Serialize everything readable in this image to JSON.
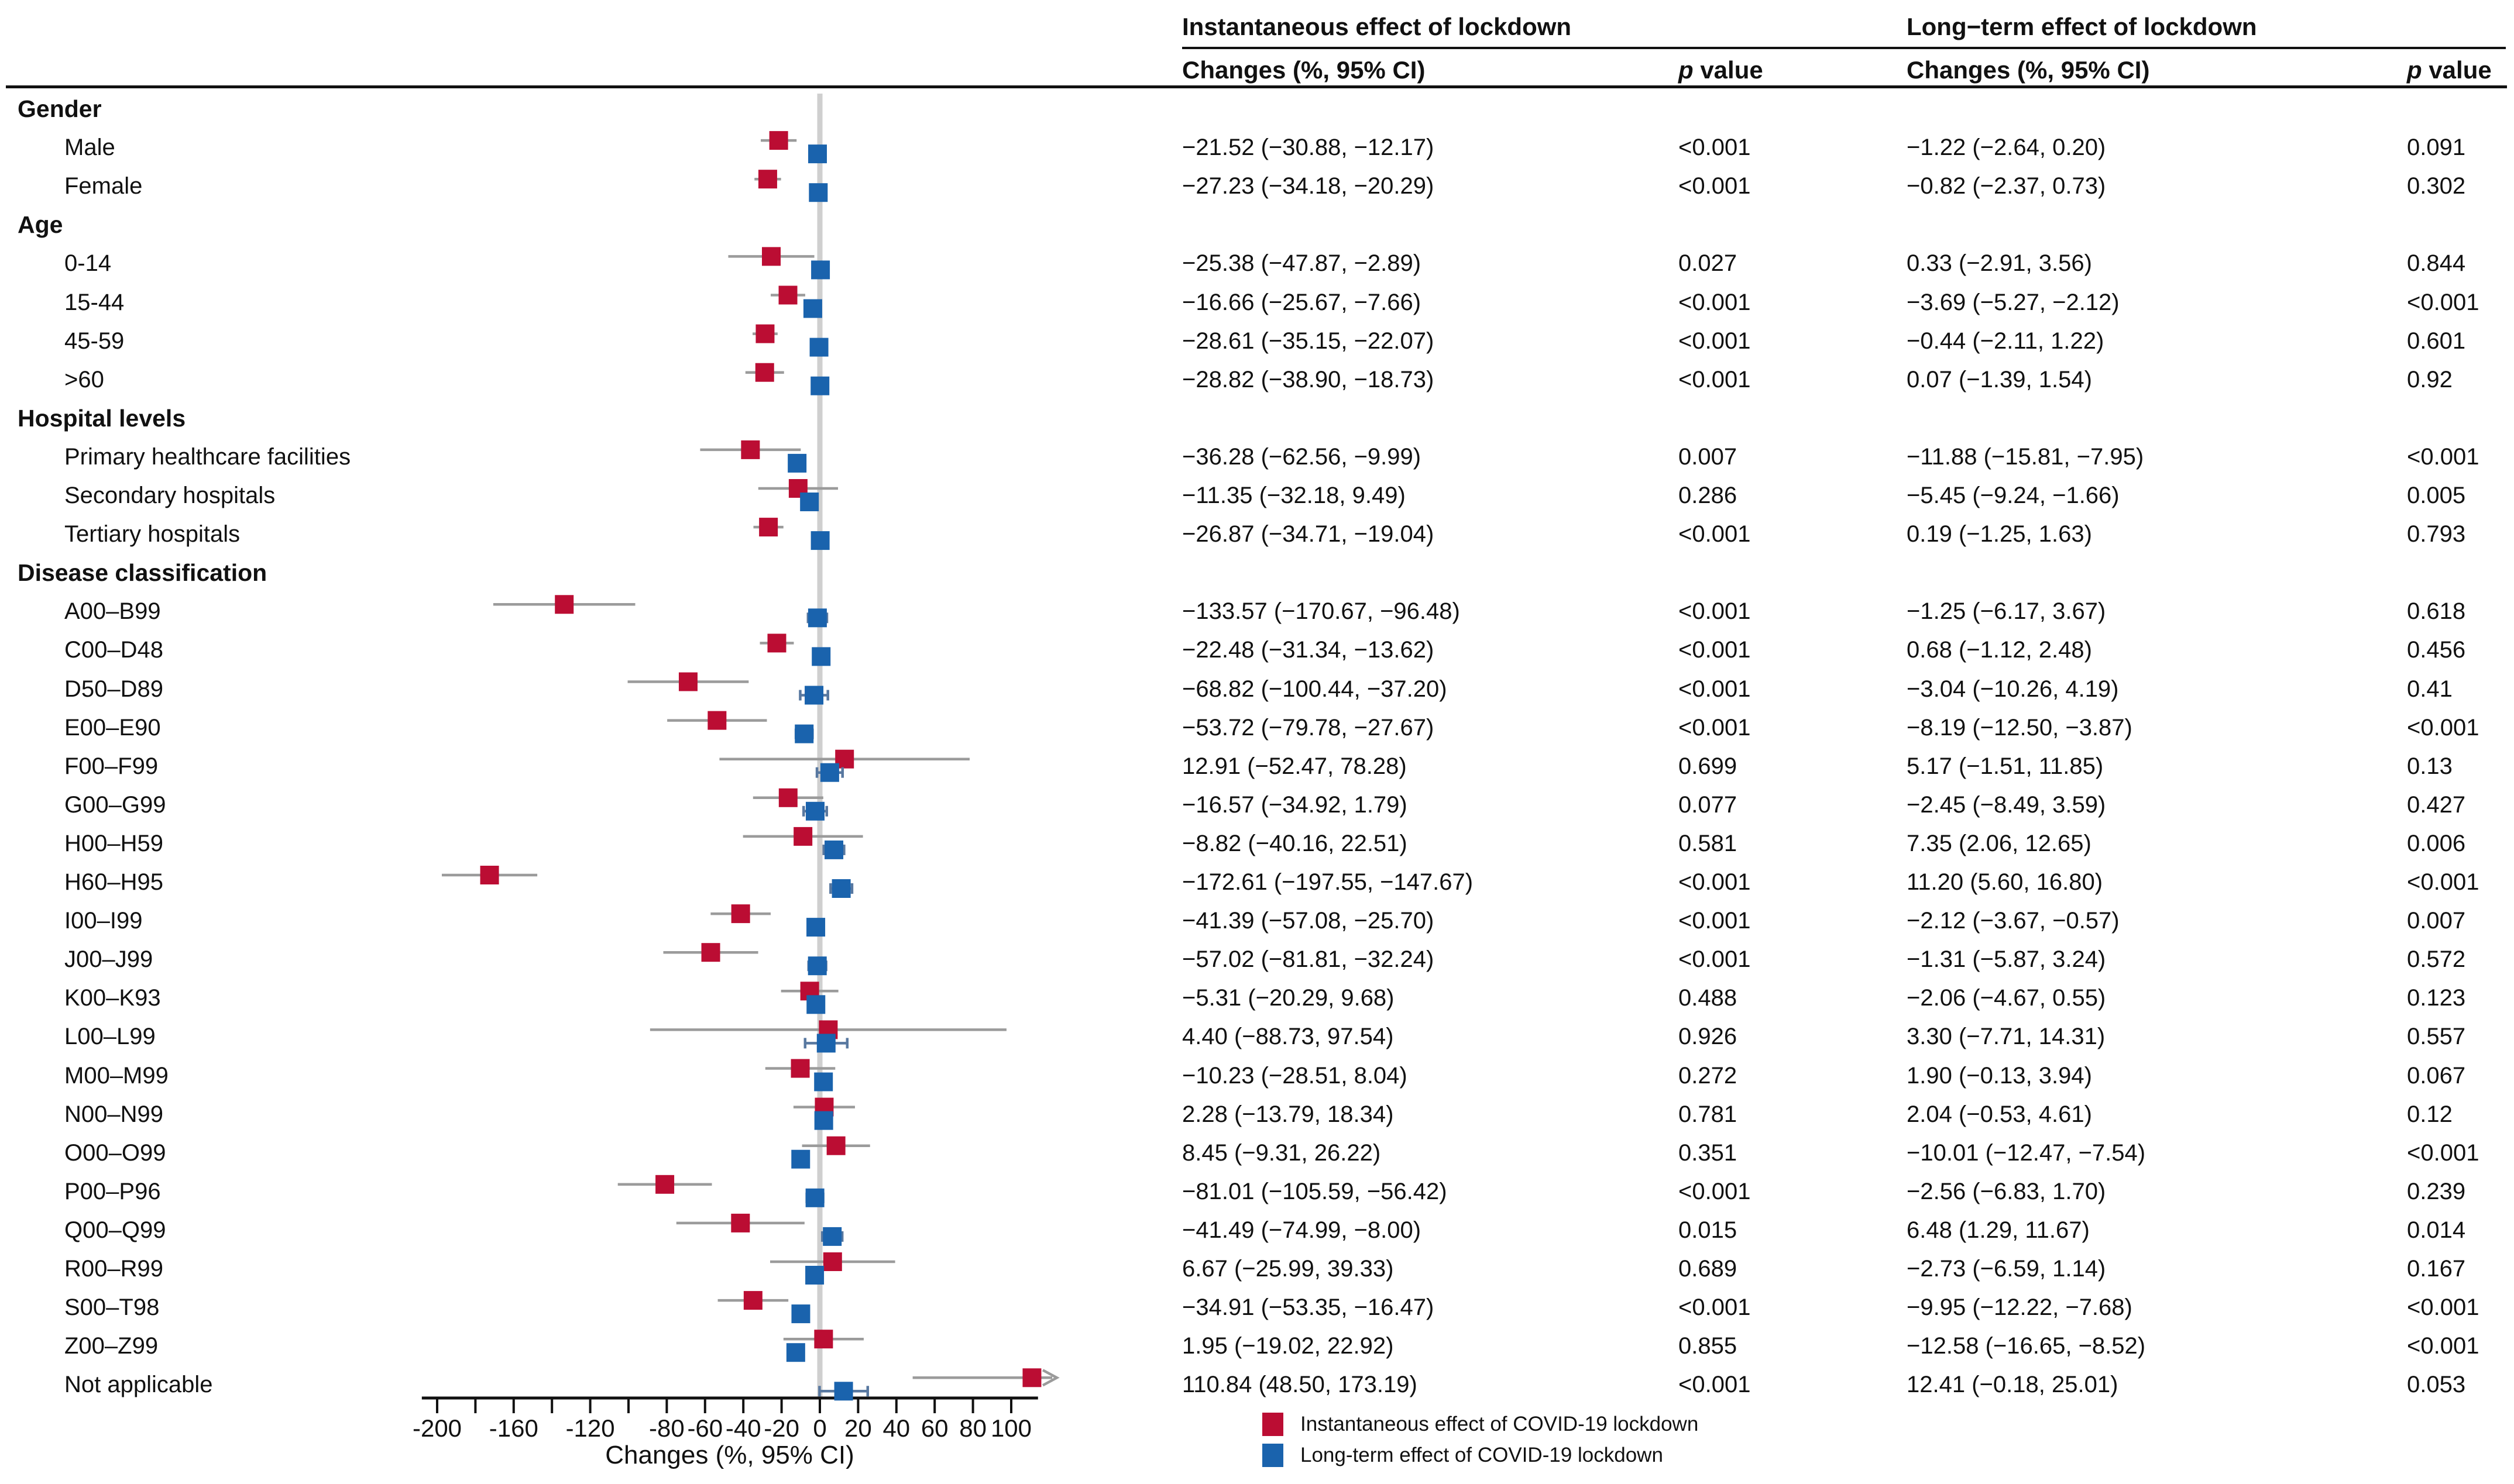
{
  "figure": {
    "group_headers": [
      "Instantaneous effect of lockdown",
      "Long−term effect of lockdown"
    ],
    "col_headers": {
      "changes": "Changes (%, 95% CI)",
      "p_italic": "p",
      "p_word": " value"
    }
  },
  "axis": {
    "label": "Changes (%, 95% CI)",
    "tick_min": -200,
    "tick_max": 100,
    "tick_step": 20,
    "labeled_ticks": [
      -200,
      -160,
      -120,
      -80,
      -60,
      -40,
      -20,
      0,
      20,
      40,
      60,
      80,
      100
    ]
  },
  "legend": [
    {
      "label": "Instantaneous effect of COVID-19 lockdown",
      "color": "#bb0d33"
    },
    {
      "label": "Long-term effect of COVID-19 lockdown",
      "color": "#1a63ad"
    }
  ],
  "colors": {
    "instantaneous": "#bb0d33",
    "long_term": "#1a63ad",
    "whisker_inst": "#9b9b9b",
    "whisker_long": "#5878a0",
    "zero_line": "#cfcfcf",
    "axis_line": "#111111",
    "text": "#111111"
  },
  "chart_data": {
    "type": "scatter",
    "subtype": "forest-plot",
    "title": "",
    "xlabel": "Changes (%, 95% CI)",
    "xlim": [
      -225,
      120
    ],
    "grid": false,
    "legend_position": "bottom",
    "series_names": [
      "Instantaneous effect of COVID-19 lockdown",
      "Long-term effect of COVID-19 lockdown"
    ],
    "rows": [
      {
        "section": "Gender"
      },
      {
        "label": "Male",
        "inst": {
          "est": -21.52,
          "lo": -30.88,
          "hi": -12.17,
          "p": "<0.001"
        },
        "long": {
          "est": -1.22,
          "lo": -2.64,
          "hi": 0.2,
          "p": "0.091"
        }
      },
      {
        "label": "Female",
        "inst": {
          "est": -27.23,
          "lo": -34.18,
          "hi": -20.29,
          "p": "<0.001"
        },
        "long": {
          "est": -0.82,
          "lo": -2.37,
          "hi": 0.73,
          "p": "0.302"
        }
      },
      {
        "section": "Age"
      },
      {
        "label": "0-14",
        "inst": {
          "est": -25.38,
          "lo": -47.87,
          "hi": -2.89,
          "p": "0.027"
        },
        "long": {
          "est": 0.33,
          "lo": -2.91,
          "hi": 3.56,
          "p": "0.844"
        }
      },
      {
        "label": "15-44",
        "inst": {
          "est": -16.66,
          "lo": -25.67,
          "hi": -7.66,
          "p": "<0.001"
        },
        "long": {
          "est": -3.69,
          "lo": -5.27,
          "hi": -2.12,
          "p": "<0.001"
        }
      },
      {
        "label": "45-59",
        "inst": {
          "est": -28.61,
          "lo": -35.15,
          "hi": -22.07,
          "p": "<0.001"
        },
        "long": {
          "est": -0.44,
          "lo": -2.11,
          "hi": 1.22,
          "p": "0.601"
        }
      },
      {
        "label": ">60",
        "inst": {
          "est": -28.82,
          "lo": -38.9,
          "hi": -18.73,
          "p": "<0.001"
        },
        "long": {
          "est": 0.07,
          "lo": -1.39,
          "hi": 1.54,
          "p": "0.92"
        }
      },
      {
        "section": "Hospital levels"
      },
      {
        "label": "Primary healthcare facilities",
        "inst": {
          "est": -36.28,
          "lo": -62.56,
          "hi": -9.99,
          "p": "0.007"
        },
        "long": {
          "est": -11.88,
          "lo": -15.81,
          "hi": -7.95,
          "p": "<0.001"
        }
      },
      {
        "label": "Secondary hospitals",
        "inst": {
          "est": -11.35,
          "lo": -32.18,
          "hi": 9.49,
          "p": "0.286"
        },
        "long": {
          "est": -5.45,
          "lo": -9.24,
          "hi": -1.66,
          "p": "0.005"
        }
      },
      {
        "label": "Tertiary hospitals",
        "inst": {
          "est": -26.87,
          "lo": -34.71,
          "hi": -19.04,
          "p": "<0.001"
        },
        "long": {
          "est": 0.19,
          "lo": -1.25,
          "hi": 1.63,
          "p": "0.793"
        }
      },
      {
        "section": "Disease classification"
      },
      {
        "label": "A00–B99",
        "inst": {
          "est": -133.57,
          "lo": -170.67,
          "hi": -96.48,
          "p": "<0.001"
        },
        "long": {
          "est": -1.25,
          "lo": -6.17,
          "hi": 3.67,
          "p": "0.618"
        }
      },
      {
        "label": "C00–D48",
        "inst": {
          "est": -22.48,
          "lo": -31.34,
          "hi": -13.62,
          "p": "<0.001"
        },
        "long": {
          "est": 0.68,
          "lo": -1.12,
          "hi": 2.48,
          "p": "0.456"
        }
      },
      {
        "label": "D50–D89",
        "inst": {
          "est": -68.82,
          "lo": -100.44,
          "hi": -37.2,
          "p": "<0.001"
        },
        "long": {
          "est": -3.04,
          "lo": -10.26,
          "hi": 4.19,
          "p": "0.41"
        }
      },
      {
        "label": "E00–E90",
        "inst": {
          "est": -53.72,
          "lo": -79.78,
          "hi": -27.67,
          "p": "<0.001"
        },
        "long": {
          "est": -8.19,
          "lo": -12.5,
          "hi": -3.87,
          "p": "<0.001"
        }
      },
      {
        "label": "F00–F99",
        "inst": {
          "est": 12.91,
          "lo": -52.47,
          "hi": 78.28,
          "p": "0.699"
        },
        "long": {
          "est": 5.17,
          "lo": -1.51,
          "hi": 11.85,
          "p": "0.13"
        }
      },
      {
        "label": "G00–G99",
        "inst": {
          "est": -16.57,
          "lo": -34.92,
          "hi": 1.79,
          "p": "0.077"
        },
        "long": {
          "est": -2.45,
          "lo": -8.49,
          "hi": 3.59,
          "p": "0.427"
        }
      },
      {
        "label": "H00–H59",
        "inst": {
          "est": -8.82,
          "lo": -40.16,
          "hi": 22.51,
          "p": "0.581"
        },
        "long": {
          "est": 7.35,
          "lo": 2.06,
          "hi": 12.65,
          "p": "0.006"
        }
      },
      {
        "label": "H60–H95",
        "inst": {
          "est": -172.61,
          "lo": -197.55,
          "hi": -147.67,
          "p": "<0.001"
        },
        "long": {
          "est": 11.2,
          "lo": 5.6,
          "hi": 16.8,
          "p": "<0.001"
        }
      },
      {
        "label": "I00–I99",
        "inst": {
          "est": -41.39,
          "lo": -57.08,
          "hi": -25.7,
          "p": "<0.001"
        },
        "long": {
          "est": -2.12,
          "lo": -3.67,
          "hi": -0.57,
          "p": "0.007"
        }
      },
      {
        "label": "J00–J99",
        "inst": {
          "est": -57.02,
          "lo": -81.81,
          "hi": -32.24,
          "p": "<0.001"
        },
        "long": {
          "est": -1.31,
          "lo": -5.87,
          "hi": 3.24,
          "p": "0.572"
        }
      },
      {
        "label": "K00–K93",
        "inst": {
          "est": -5.31,
          "lo": -20.29,
          "hi": 9.68,
          "p": "0.488"
        },
        "long": {
          "est": -2.06,
          "lo": -4.67,
          "hi": 0.55,
          "p": "0.123"
        }
      },
      {
        "label": "L00–L99",
        "inst": {
          "est": 4.4,
          "lo": -88.73,
          "hi": 97.54,
          "p": "0.926"
        },
        "long": {
          "est": 3.3,
          "lo": -7.71,
          "hi": 14.31,
          "p": "0.557"
        }
      },
      {
        "label": "M00–M99",
        "inst": {
          "est": -10.23,
          "lo": -28.51,
          "hi": 8.04,
          "p": "0.272"
        },
        "long": {
          "est": 1.9,
          "lo": -0.13,
          "hi": 3.94,
          "p": "0.067"
        }
      },
      {
        "label": "N00–N99",
        "inst": {
          "est": 2.28,
          "lo": -13.79,
          "hi": 18.34,
          "p": "0.781"
        },
        "long": {
          "est": 2.04,
          "lo": -0.53,
          "hi": 4.61,
          "p": "0.12"
        }
      },
      {
        "label": "O00–O99",
        "inst": {
          "est": 8.45,
          "lo": -9.31,
          "hi": 26.22,
          "p": "0.351"
        },
        "long": {
          "est": -10.01,
          "lo": -12.47,
          "hi": -7.54,
          "p": "<0.001"
        }
      },
      {
        "label": "P00–P96",
        "inst": {
          "est": -81.01,
          "lo": -105.59,
          "hi": -56.42,
          "p": "<0.001"
        },
        "long": {
          "est": -2.56,
          "lo": -6.83,
          "hi": 1.7,
          "p": "0.239"
        }
      },
      {
        "label": "Q00–Q99",
        "inst": {
          "est": -41.49,
          "lo": -74.99,
          "hi": -8.0,
          "p": "0.015"
        },
        "long": {
          "est": 6.48,
          "lo": 1.29,
          "hi": 11.67,
          "p": "0.014"
        }
      },
      {
        "label": "R00–R99",
        "inst": {
          "est": 6.67,
          "lo": -25.99,
          "hi": 39.33,
          "p": "0.689"
        },
        "long": {
          "est": -2.73,
          "lo": -6.59,
          "hi": 1.14,
          "p": "0.167"
        }
      },
      {
        "label": "S00–T98",
        "inst": {
          "est": -34.91,
          "lo": -53.35,
          "hi": -16.47,
          "p": "<0.001"
        },
        "long": {
          "est": -9.95,
          "lo": -12.22,
          "hi": -7.68,
          "p": "<0.001"
        }
      },
      {
        "label": "Z00–Z99",
        "inst": {
          "est": 1.95,
          "lo": -19.02,
          "hi": 22.92,
          "p": "0.855"
        },
        "long": {
          "est": -12.58,
          "lo": -16.65,
          "hi": -8.52,
          "p": "<0.001"
        }
      },
      {
        "label": "Not applicable",
        "inst": {
          "est": 110.84,
          "lo": 48.5,
          "hi": 173.19,
          "p": "<0.001",
          "clip_hi_arrow": true
        },
        "long": {
          "est": 12.41,
          "lo": -0.18,
          "hi": 25.01,
          "p": "0.053"
        }
      }
    ]
  }
}
